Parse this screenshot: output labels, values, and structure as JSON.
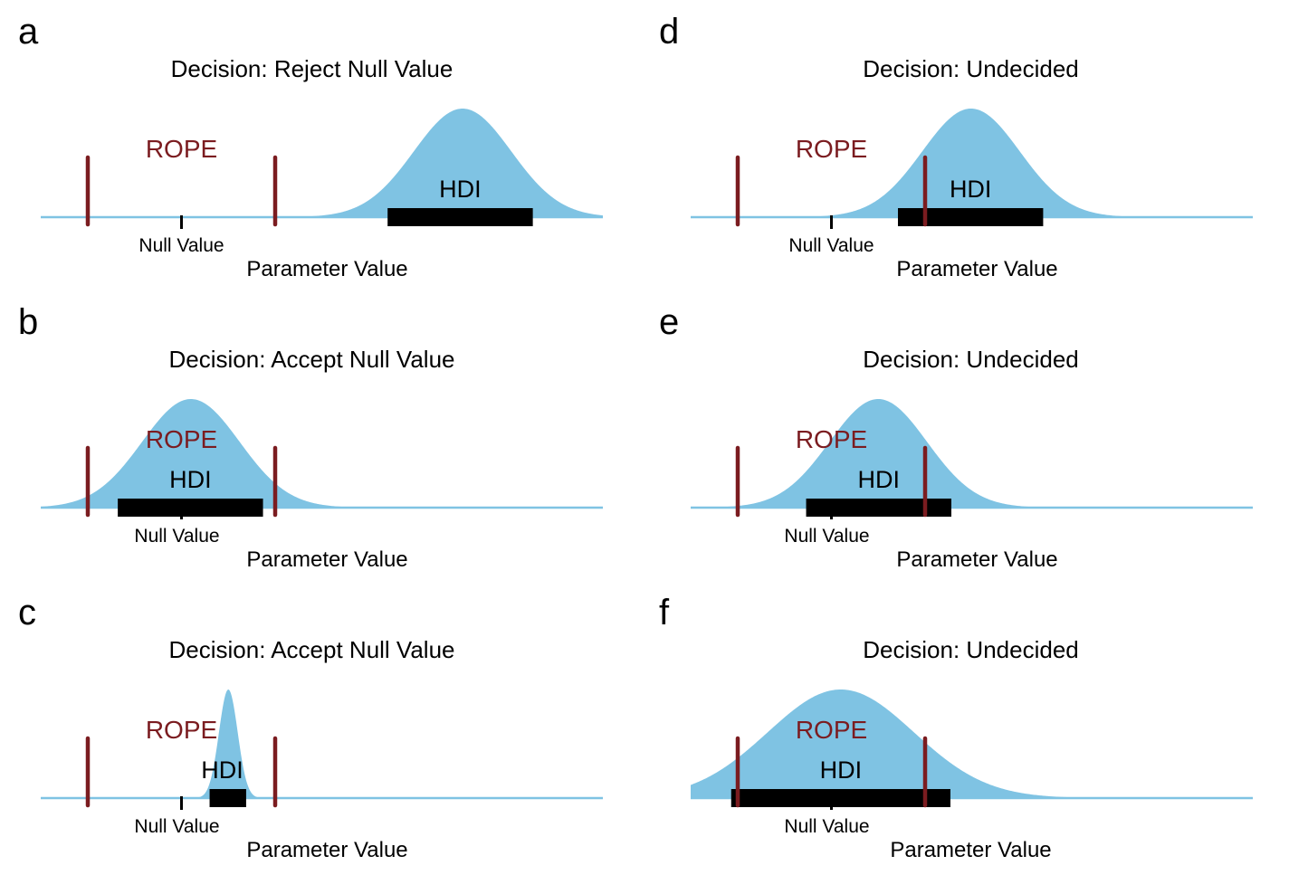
{
  "colors": {
    "density": "#7fc3e3",
    "axis": "#7fc3e3",
    "rope": "#7b1c20",
    "hdi": "#000000",
    "text": "#000000"
  },
  "chart_data": [
    {
      "type": "area",
      "panel": "a",
      "title": "Decision: Reject Null Value",
      "xlabel": "Parameter Value",
      "xlim": [
        -1.0,
        5.0
      ],
      "null_value": 0.0,
      "null_label": "Null Value",
      "rope": [
        -1.0,
        1.0
      ],
      "rope_label": "ROPE",
      "hdi": [
        2.2,
        3.75
      ],
      "hdi_label": "HDI",
      "density": {
        "mean": 3.0,
        "sd": 0.52,
        "relative_peak": 1.0
      }
    },
    {
      "type": "area",
      "panel": "b",
      "title": "Decision: Accept Null Value",
      "xlabel": "Parameter Value",
      "xlim": [
        -1.0,
        5.0
      ],
      "null_value": 0.0,
      "null_label": "Null Value",
      "rope": [
        -1.0,
        1.0
      ],
      "rope_label": "ROPE",
      "hdi": [
        -0.68,
        0.87
      ],
      "hdi_label": "HDI",
      "density": {
        "mean": 0.1,
        "sd": 0.52,
        "relative_peak": 1.0
      }
    },
    {
      "type": "area",
      "panel": "c",
      "title": "Decision: Accept Null Value",
      "xlabel": "Parameter Value",
      "xlim": [
        -1.0,
        5.0
      ],
      "null_value": 0.0,
      "null_label": "Null Value",
      "rope": [
        -1.0,
        1.0
      ],
      "rope_label": "ROPE",
      "hdi": [
        0.3,
        0.69
      ],
      "hdi_label": "HDI",
      "density": {
        "mean": 0.5,
        "sd": 0.1,
        "relative_peak": 1.0
      }
    },
    {
      "type": "area",
      "panel": "d",
      "title": "Decision: Undecided",
      "xlabel": "Parameter Value",
      "xlim": [
        -1.0,
        5.0
      ],
      "null_value": 0.0,
      "null_label": "Null Value",
      "rope": [
        -1.0,
        1.0
      ],
      "rope_label": "ROPE",
      "hdi": [
        0.71,
        2.26
      ],
      "hdi_label": "HDI",
      "density": {
        "mean": 1.49,
        "sd": 0.52,
        "relative_peak": 1.0
      }
    },
    {
      "type": "area",
      "panel": "e",
      "title": "Decision: Undecided",
      "xlabel": "Parameter Value",
      "xlim": [
        -1.0,
        5.0
      ],
      "null_value": 0.0,
      "null_label": "Null Value",
      "rope": [
        -1.0,
        1.0
      ],
      "rope_label": "ROPE",
      "hdi": [
        -0.27,
        1.28
      ],
      "hdi_label": "HDI",
      "density": {
        "mean": 0.5,
        "sd": 0.52,
        "relative_peak": 1.0
      }
    },
    {
      "type": "area",
      "panel": "f",
      "title": "Decision: Undecided",
      "xlabel": "Parameter Value",
      "xlim": [
        -1.0,
        5.0
      ],
      "null_value": 0.0,
      "null_label": "Null Value",
      "rope": [
        -1.0,
        1.0
      ],
      "rope_label": "ROPE",
      "hdi": [
        -1.07,
        1.27
      ],
      "hdi_label": "HDI",
      "density": {
        "mean": 0.1,
        "sd": 0.78,
        "relative_peak": 1.0
      }
    }
  ]
}
